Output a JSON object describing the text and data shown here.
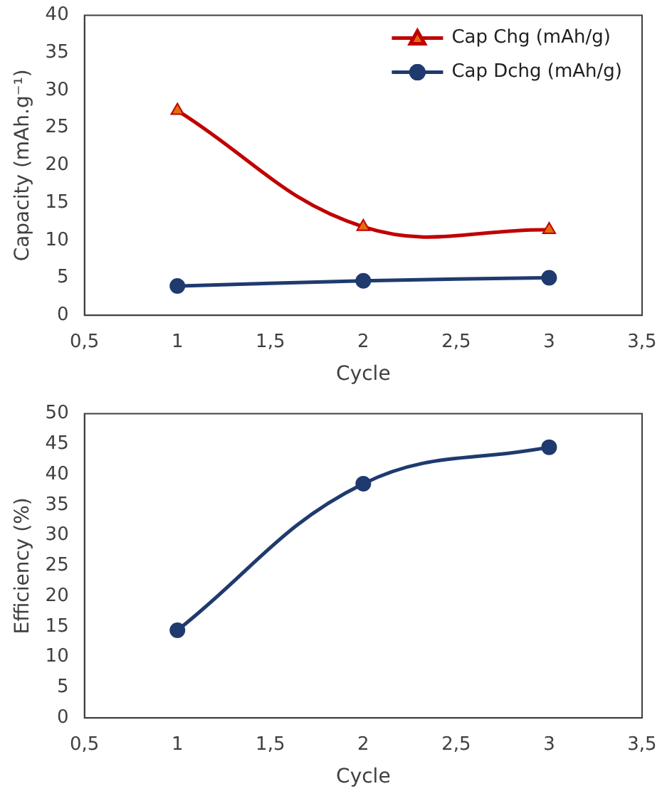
{
  "chart_data": [
    {
      "type": "line",
      "xlabel": "Cycle",
      "ylabel": "Capacity (mAh.g⁻¹)",
      "x": [
        1,
        2,
        3
      ],
      "series": [
        {
          "name": "Cap Chg (mAh/g)",
          "color": "#c00000",
          "marker": "triangle",
          "values": [
            27.3,
            11.8,
            11.4
          ]
        },
        {
          "name": "Cap Dchg (mAh/g)",
          "color": "#1f3a6e",
          "marker": "circle",
          "values": [
            3.9,
            4.6,
            5.0
          ]
        }
      ],
      "xlim": [
        0.5,
        3.5
      ],
      "xticks": [
        {
          "value": 0.5,
          "label": "0,5"
        },
        1,
        {
          "value": 1.5,
          "label": "1,5"
        },
        2,
        {
          "value": 2.5,
          "label": "2,5"
        },
        3,
        {
          "value": 3.5,
          "label": "3,5"
        }
      ],
      "ylim": [
        0,
        40
      ],
      "yticks": [
        0,
        5,
        10,
        15,
        20,
        25,
        30,
        35,
        40
      ],
      "grid": false,
      "legend": "top right"
    },
    {
      "type": "line",
      "xlabel": "Cycle",
      "ylabel": "Efficiency (%)",
      "x": [
        1,
        2,
        3
      ],
      "series": [
        {
          "color": "#1f3a6e",
          "marker": "circle",
          "values": [
            14.4,
            38.5,
            44.5
          ]
        }
      ],
      "xlim": [
        0.5,
        3.5
      ],
      "xticks": [
        {
          "value": 0.5,
          "label": "0,5"
        },
        1,
        {
          "value": 1.5,
          "label": "1,5"
        },
        2,
        {
          "value": 2.5,
          "label": "2,5"
        },
        3,
        {
          "value": 3.5,
          "label": "3,5"
        }
      ],
      "ylim": [
        0,
        50
      ],
      "yticks": [
        0,
        5,
        10,
        15,
        20,
        25,
        30,
        35,
        40,
        45,
        50
      ],
      "grid": false
    }
  ]
}
